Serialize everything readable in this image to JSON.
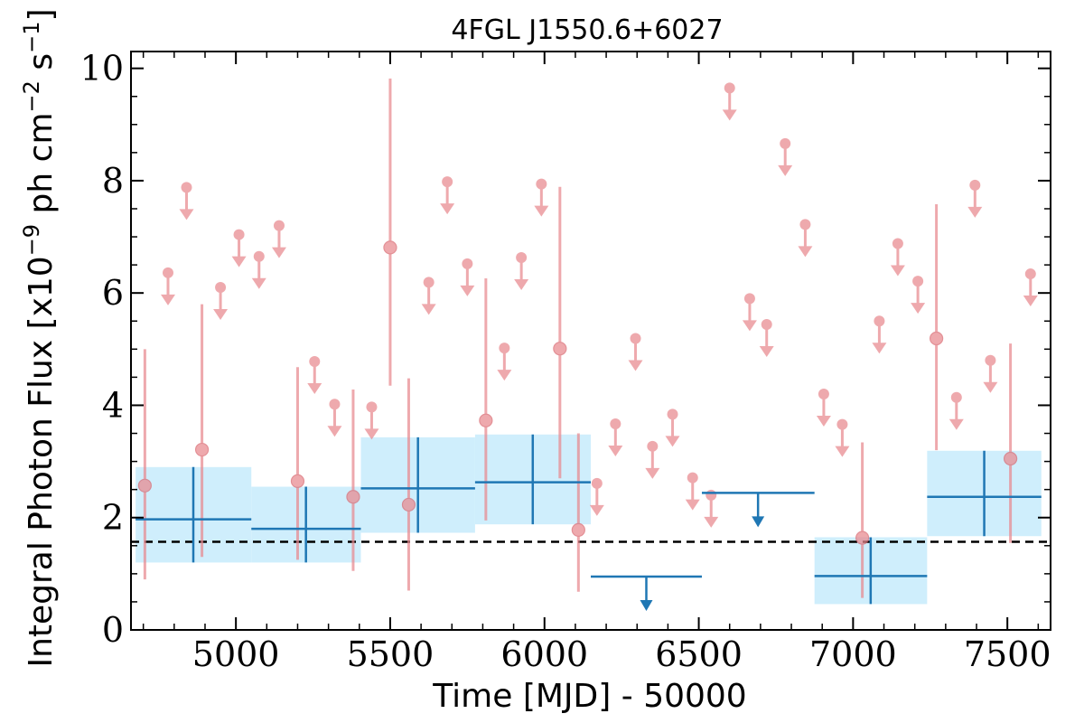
{
  "chart_data": {
    "type": "scatter",
    "title": "4FGL J1550.6+6027",
    "xlabel": "Time [MJD] - 50000",
    "ylabel": "Integral Photon Flux [x10^-9 ph cm^-2 s^-1]",
    "ylabel_parts": {
      "a": "Integral Photon Flux [x10",
      "b": "−9",
      "c": " ph cm",
      "d": "−2",
      "e": " s",
      "f": "−1",
      "g": "]"
    },
    "xlim": [
      4660,
      7640
    ],
    "ylim": [
      0,
      10.3
    ],
    "xticks": [
      5000,
      5500,
      6000,
      6500,
      7000,
      7500
    ],
    "xtick_labels": [
      "5000",
      "5500",
      "6000",
      "6500",
      "7000",
      "7500"
    ],
    "yticks": [
      0,
      2,
      4,
      6,
      8,
      10
    ],
    "ytick_labels": [
      "0",
      "2",
      "4",
      "6",
      "8",
      "10"
    ],
    "grid": false,
    "reference_line": {
      "y": 1.57,
      "style": "dashed",
      "color": "#000000"
    },
    "colors": {
      "short_bins": "#e8888e",
      "long_bins": "#1f77b4",
      "long_band": "#cfeefc"
    },
    "series": [
      {
        "kind": "short_detections",
        "points": [
          {
            "x": 4705,
            "y": 2.57,
            "lo": 0.9,
            "hi": 5.0
          },
          {
            "x": 4890,
            "y": 3.21,
            "lo": 1.3,
            "hi": 5.8
          },
          {
            "x": 5200,
            "y": 2.65,
            "lo": 1.25,
            "hi": 4.68
          },
          {
            "x": 5380,
            "y": 2.37,
            "lo": 1.05,
            "hi": 4.28
          },
          {
            "x": 5500,
            "y": 6.81,
            "lo": 4.35,
            "hi": 9.82
          },
          {
            "x": 5560,
            "y": 2.23,
            "lo": 0.7,
            "hi": 4.48
          },
          {
            "x": 5810,
            "y": 3.73,
            "lo": 1.95,
            "hi": 6.26
          },
          {
            "x": 6050,
            "y": 5.01,
            "lo": 2.7,
            "hi": 7.89
          },
          {
            "x": 6110,
            "y": 1.78,
            "lo": 0.68,
            "hi": 3.5
          },
          {
            "x": 7030,
            "y": 1.64,
            "lo": 0.57,
            "hi": 3.34
          },
          {
            "x": 7270,
            "y": 5.19,
            "lo": 3.2,
            "hi": 7.58
          },
          {
            "x": 7510,
            "y": 3.05,
            "lo": 1.55,
            "hi": 5.1
          }
        ]
      },
      {
        "kind": "short_upper_limits",
        "points": [
          {
            "x": 4780,
            "y": 6.36
          },
          {
            "x": 4840,
            "y": 7.88
          },
          {
            "x": 4950,
            "y": 6.1
          },
          {
            "x": 5010,
            "y": 7.04
          },
          {
            "x": 5075,
            "y": 6.65
          },
          {
            "x": 5140,
            "y": 7.2
          },
          {
            "x": 5255,
            "y": 4.78
          },
          {
            "x": 5320,
            "y": 4.02
          },
          {
            "x": 5440,
            "y": 3.97
          },
          {
            "x": 5625,
            "y": 6.19
          },
          {
            "x": 5685,
            "y": 7.98
          },
          {
            "x": 5750,
            "y": 6.52
          },
          {
            "x": 5870,
            "y": 5.02
          },
          {
            "x": 5925,
            "y": 6.63
          },
          {
            "x": 5990,
            "y": 7.94
          },
          {
            "x": 6170,
            "y": 2.61
          },
          {
            "x": 6230,
            "y": 3.67
          },
          {
            "x": 6295,
            "y": 5.19
          },
          {
            "x": 6350,
            "y": 3.27
          },
          {
            "x": 6415,
            "y": 3.84
          },
          {
            "x": 6480,
            "y": 2.71
          },
          {
            "x": 6540,
            "y": 2.4
          },
          {
            "x": 6600,
            "y": 9.65
          },
          {
            "x": 6665,
            "y": 5.9
          },
          {
            "x": 6720,
            "y": 5.44
          },
          {
            "x": 6780,
            "y": 8.66
          },
          {
            "x": 6845,
            "y": 7.22
          },
          {
            "x": 6905,
            "y": 4.2
          },
          {
            "x": 6965,
            "y": 3.66
          },
          {
            "x": 7085,
            "y": 5.5
          },
          {
            "x": 7145,
            "y": 6.88
          },
          {
            "x": 7210,
            "y": 6.21
          },
          {
            "x": 7335,
            "y": 4.14
          },
          {
            "x": 7395,
            "y": 7.92
          },
          {
            "x": 7445,
            "y": 4.8
          },
          {
            "x": 7575,
            "y": 6.34
          }
        ]
      },
      {
        "kind": "long_detections",
        "points": [
          {
            "x0": 4675,
            "x1": 5050,
            "xc": 4862,
            "y": 1.97,
            "lo": 1.2,
            "hi": 2.9
          },
          {
            "x0": 5050,
            "x1": 5405,
            "xc": 5227,
            "y": 1.8,
            "lo": 1.2,
            "hi": 2.55
          },
          {
            "x0": 5405,
            "x1": 5775,
            "xc": 5590,
            "y": 2.52,
            "lo": 1.73,
            "hi": 3.43
          },
          {
            "x0": 5775,
            "x1": 6150,
            "xc": 5962,
            "y": 2.63,
            "lo": 1.88,
            "hi": 3.48
          },
          {
            "x0": 6875,
            "x1": 7240,
            "xc": 7057,
            "y": 0.96,
            "lo": 0.46,
            "hi": 1.65
          },
          {
            "x0": 7240,
            "x1": 7610,
            "xc": 7425,
            "y": 2.37,
            "lo": 1.67,
            "hi": 3.19
          }
        ]
      },
      {
        "kind": "long_upper_limits",
        "points": [
          {
            "x0": 6150,
            "x1": 6510,
            "xc": 6330,
            "y": 0.95
          },
          {
            "x0": 6510,
            "x1": 6875,
            "xc": 6692,
            "y": 2.44
          }
        ]
      }
    ]
  }
}
